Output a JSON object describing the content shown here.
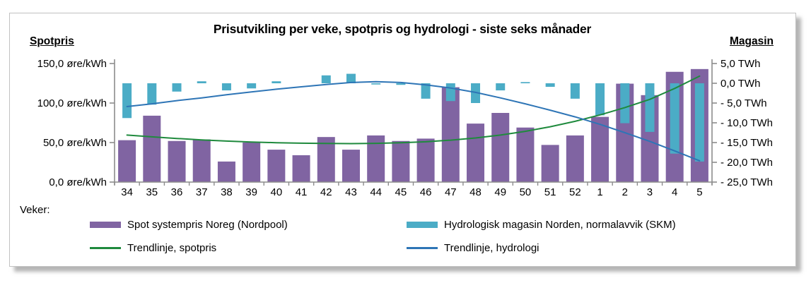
{
  "chart": {
    "title": "Prisutvikling per veke, spotpris og hydrologi - siste seks månader",
    "left_axis_title": "Spotpris",
    "right_axis_title": "Magasin",
    "x_axis_caption": "Veker:",
    "left_tick_labels": [
      "150,0 øre/kWh",
      "100,0 øre/kWh",
      "50,0 øre/kWh",
      "0,0 øre/kWh"
    ],
    "right_tick_labels": [
      "5,0 TWh",
      "0,0 TWh",
      "- 5,0 TWh",
      "- 10,0 TWh",
      "- 15,0 TWh",
      "- 20,0 TWh",
      "- 25,0 TWh"
    ],
    "legend": [
      {
        "label": "Spot systempris Noreg (Nordpool)",
        "type": "bar",
        "color": "#8064A2"
      },
      {
        "label": "Hydrologisk magasin Norden, normalavvik (SKM)",
        "type": "bar",
        "color": "#4BACC6"
      },
      {
        "label": "Trendlinje, spotpris",
        "type": "line",
        "color": "#1F8A3D"
      },
      {
        "label": "Trendlinje, hydrologi",
        "type": "line",
        "color": "#2E75B6"
      }
    ],
    "colors": {
      "axis": "#8c8c8c",
      "text": "#000000",
      "frame_border": "#c2c2c2"
    }
  },
  "chart_data": {
    "type": "bar",
    "categories": [
      "34",
      "35",
      "36",
      "37",
      "38",
      "39",
      "40",
      "41",
      "42",
      "43",
      "44",
      "45",
      "46",
      "47",
      "48",
      "49",
      "50",
      "51",
      "52",
      "1",
      "2",
      "3",
      "4",
      "5"
    ],
    "series": [
      {
        "name": "Spot systempris Noreg (Nordpool)",
        "kind": "bar",
        "axis": "left",
        "color": "#8064A2",
        "values": [
          53,
          84,
          52,
          54,
          26,
          50,
          41,
          34,
          57,
          41,
          59,
          52,
          55,
          120,
          74,
          87.5,
          69,
          47,
          59,
          82.5,
          124.5,
          110,
          139.5,
          143
        ]
      },
      {
        "name": "Hydrologisk magasin Norden, normalavvik (SKM)",
        "kind": "bar",
        "axis": "right",
        "color": "#4BACC6",
        "values": [
          -8.8,
          -5.4,
          -2.1,
          0.5,
          -1.8,
          -1.3,
          0.5,
          0,
          2.0,
          2.4,
          -0.3,
          -0.4,
          -3.9,
          -4.5,
          -5.0,
          -1.8,
          0.3,
          -0.9,
          -3.9,
          -8.1,
          -10.1,
          -12.3,
          -17.8,
          -19.8
        ]
      },
      {
        "name": "Trendlinje, spotpris",
        "kind": "line",
        "axis": "left",
        "color": "#1F8A3D",
        "values": [
          59.5,
          57.2,
          55.2,
          53.4,
          51.9,
          50.7,
          49.8,
          49.2,
          48.8,
          48.7,
          49.0,
          49.7,
          51.0,
          53.0,
          55.8,
          59.5,
          64.2,
          70.0,
          76.9,
          85.0,
          94.3,
          104.6,
          118.5,
          134
        ]
      },
      {
        "name": "Trendlinje, hydrologi",
        "kind": "line",
        "axis": "right",
        "color": "#2E75B6",
        "values": [
          -5.9,
          -5.2,
          -4.4,
          -3.7,
          -2.9,
          -2.2,
          -1.5,
          -0.9,
          -0.3,
          0.2,
          0.4,
          0.2,
          -0.4,
          -1.2,
          -2.3,
          -3.7,
          -5.2,
          -6.8,
          -8.5,
          -10.4,
          -12.5,
          -14.7,
          -17.1,
          -19.6
        ]
      }
    ],
    "left_axis": {
      "label": "Spotpris",
      "unit": "øre/kWh",
      "min": 0,
      "max": 150,
      "ticks": [
        150,
        100,
        50,
        0
      ]
    },
    "right_axis": {
      "label": "Magasin",
      "unit": "TWh",
      "min": -25,
      "max": 5,
      "ticks": [
        5,
        0,
        -5,
        -10,
        -15,
        -20,
        -25
      ]
    },
    "xlabel": "Veker",
    "grid": false,
    "legend_position": "bottom"
  }
}
